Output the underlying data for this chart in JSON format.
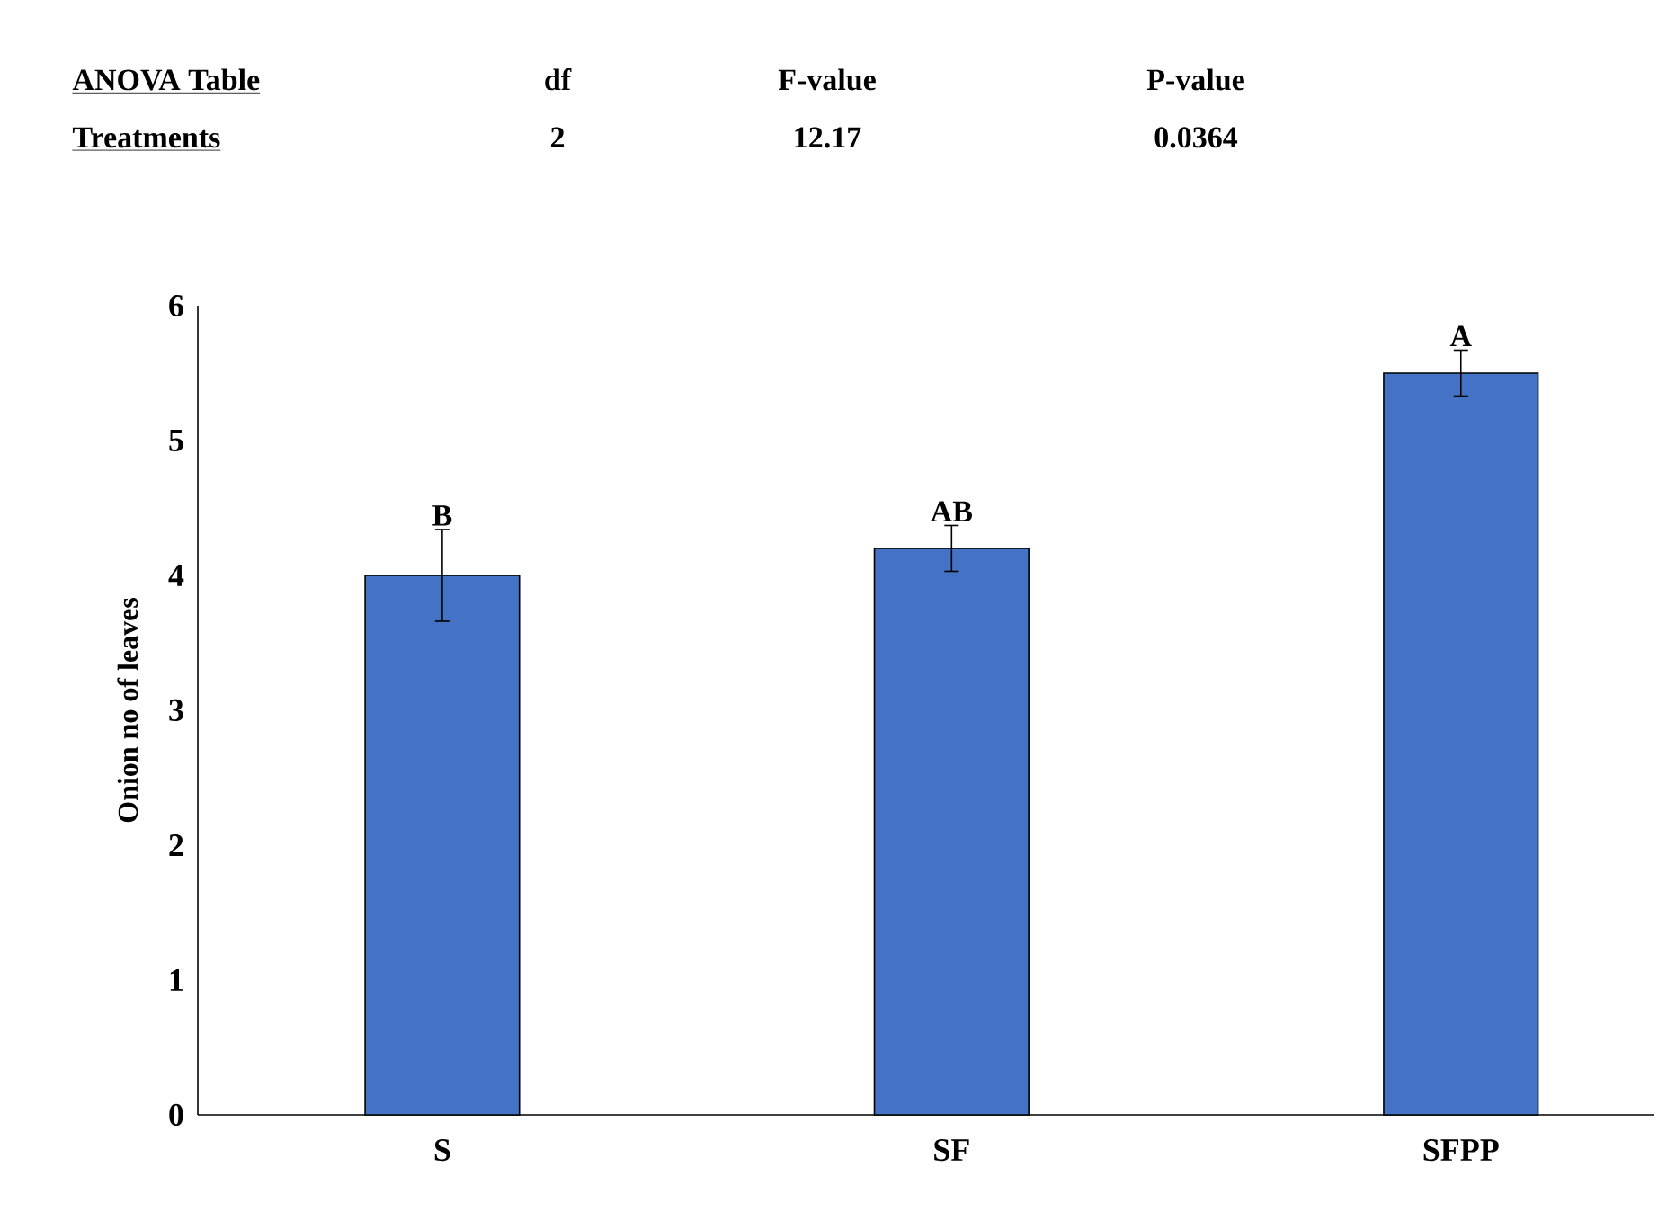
{
  "chart_data": {
    "type": "bar",
    "ylabel": "Onion no of leaves",
    "categories": [
      "S",
      "SF",
      "SFPP"
    ],
    "values": [
      4.0,
      4.2,
      5.5
    ],
    "errors": [
      0.34,
      0.17,
      0.17
    ],
    "value_labels": [
      "B",
      "AB",
      "A"
    ],
    "color": "#4472c4",
    "ylim": [
      0,
      6
    ],
    "yticks": [
      0,
      1,
      2,
      3,
      4,
      5,
      6
    ],
    "annotations": [
      "ANOVA Table",
      "df",
      "F-value",
      "P-value",
      "Treatments",
      "2",
      "12.17",
      "0.0364"
    ]
  }
}
